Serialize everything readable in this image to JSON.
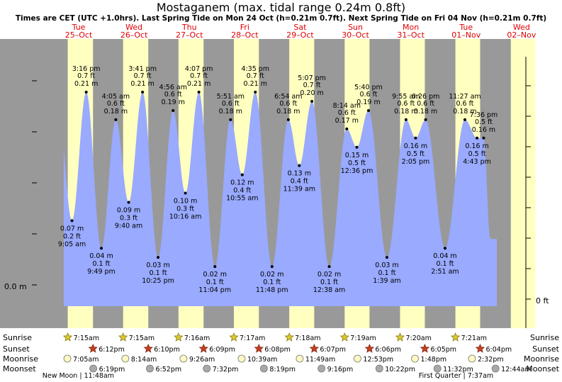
{
  "chart_data": {
    "type": "area",
    "title": "Mostaganem (max. tidal range 0.24m 0.8ft)",
    "subtitle": "Times are CET (UTC +1.0hrs). Last Spring Tide on Mon 24 Oct (h=0.21m 0.7ft). Next Spring Tide on Fri 04 Nov (h=0.21m 0.7ft)",
    "x_range_days": [
      0,
      9
    ],
    "x_range_note": "days from Tue 25-Oct 00:00",
    "ylim_m": [
      -0.02,
      0.24
    ],
    "y_axis_left_label": "0.0 m",
    "y_axis_right_label": "0 ft",
    "days": [
      {
        "dow": "Tue",
        "date": "25–Oct"
      },
      {
        "dow": "Wed",
        "date": "26–Oct"
      },
      {
        "dow": "Thu",
        "date": "27–Oct"
      },
      {
        "dow": "Fri",
        "date": "28–Oct"
      },
      {
        "dow": "Sat",
        "date": "29–Oct"
      },
      {
        "dow": "Sun",
        "date": "30–Oct"
      },
      {
        "dow": "Mon",
        "date": "31–Oct"
      },
      {
        "dow": "Tue",
        "date": "01–Nov"
      },
      {
        "dow": "Wed",
        "date": "02–Nov"
      }
    ],
    "daylight_hours": [
      [
        7.25,
        18.2
      ],
      [
        7.25,
        18.167
      ],
      [
        7.267,
        18.15
      ],
      [
        7.283,
        18.133
      ],
      [
        7.3,
        18.117
      ],
      [
        7.317,
        18.1
      ],
      [
        7.333,
        18.083
      ],
      [
        7.35,
        18.067
      ],
      [
        7.367,
        18.05
      ]
    ],
    "tides": [
      {
        "day": 0,
        "hour": 9.083,
        "type": "low",
        "m": 0.07,
        "m_text": "0.07 m",
        "ft_text": "0.2 ft",
        "time": "9:05 am"
      },
      {
        "day": 0,
        "hour": 15.267,
        "type": "high",
        "m": 0.21,
        "m_text": "0.21 m",
        "ft_text": "0.7 ft",
        "time": "3:16 pm"
      },
      {
        "day": 0,
        "hour": 21.817,
        "type": "low",
        "m": 0.04,
        "m_text": "0.04 m",
        "ft_text": "0.1 ft",
        "time": "9:49 pm"
      },
      {
        "day": 1,
        "hour": 4.083,
        "type": "high",
        "m": 0.18,
        "m_text": "0.18 m",
        "ft_text": "0.6 ft",
        "time": "4:05 am"
      },
      {
        "day": 1,
        "hour": 9.667,
        "type": "low",
        "m": 0.09,
        "m_text": "0.09 m",
        "ft_text": "0.3 ft",
        "time": "9:40 am"
      },
      {
        "day": 1,
        "hour": 15.683,
        "type": "high",
        "m": 0.21,
        "m_text": "0.21 m",
        "ft_text": "0.7 ft",
        "time": "3:41 pm"
      },
      {
        "day": 1,
        "hour": 22.417,
        "type": "low",
        "m": 0.03,
        "m_text": "0.03 m",
        "ft_text": "0.1 ft",
        "time": "10:25 pm"
      },
      {
        "day": 2,
        "hour": 4.933,
        "type": "high",
        "m": 0.19,
        "m_text": "0.19 m",
        "ft_text": "0.6 ft",
        "time": "4:56 am"
      },
      {
        "day": 2,
        "hour": 10.267,
        "type": "low",
        "m": 0.1,
        "m_text": "0.10 m",
        "ft_text": "0.3 ft",
        "time": "10:16 am"
      },
      {
        "day": 2,
        "hour": 16.117,
        "type": "high",
        "m": 0.21,
        "m_text": "0.21 m",
        "ft_text": "0.7 ft",
        "time": "4:07 pm"
      },
      {
        "day": 2,
        "hour": 23.067,
        "type": "low",
        "m": 0.02,
        "m_text": "0.02 m",
        "ft_text": "0.1 ft",
        "time": "11:04 pm"
      },
      {
        "day": 3,
        "hour": 5.85,
        "type": "high",
        "m": 0.18,
        "m_text": "0.18 m",
        "ft_text": "0.6 ft",
        "time": "5:51 am"
      },
      {
        "day": 3,
        "hour": 10.917,
        "type": "low",
        "m": 0.12,
        "m_text": "0.12 m",
        "ft_text": "0.4 ft",
        "time": "10:55 am"
      },
      {
        "day": 3,
        "hour": 16.583,
        "type": "high",
        "m": 0.21,
        "m_text": "0.21 m",
        "ft_text": "0.7 ft",
        "time": "4:35 pm"
      },
      {
        "day": 3,
        "hour": 23.8,
        "type": "low",
        "m": 0.02,
        "m_text": "0.02 m",
        "ft_text": "0.1 ft",
        "time": "11:48 pm"
      },
      {
        "day": 4,
        "hour": 6.9,
        "type": "high",
        "m": 0.18,
        "m_text": "0.18 m",
        "ft_text": "0.6 ft",
        "time": "6:54 am"
      },
      {
        "day": 4,
        "hour": 11.65,
        "type": "low",
        "m": 0.13,
        "m_text": "0.13 m",
        "ft_text": "0.4 ft",
        "time": "11:39 am"
      },
      {
        "day": 4,
        "hour": 17.117,
        "type": "high",
        "m": 0.2,
        "m_text": "0.20 m",
        "ft_text": "0.7 ft",
        "time": "5:07 pm"
      },
      {
        "day": 5,
        "hour": 0.633,
        "type": "low",
        "m": 0.02,
        "m_text": "0.02 m",
        "ft_text": "0.1 ft",
        "time": "12:38 am"
      },
      {
        "day": 5,
        "hour": 8.233,
        "type": "high",
        "m": 0.17,
        "m_text": "0.17 m",
        "ft_text": "0.6 ft",
        "time": "8:14 am"
      },
      {
        "day": 5,
        "hour": 12.6,
        "type": "low",
        "m": 0.15,
        "m_text": "0.15 m",
        "ft_text": "0.5 ft",
        "time": "12:36 pm"
      },
      {
        "day": 5,
        "hour": 17.667,
        "type": "high",
        "m": 0.19,
        "m_text": "0.19 m",
        "ft_text": "0.6 ft",
        "time": "5:40 pm"
      },
      {
        "day": 6,
        "hour": 1.65,
        "type": "low",
        "m": 0.03,
        "m_text": "0.03 m",
        "ft_text": "0.1 ft",
        "time": "1:39 am"
      },
      {
        "day": 6,
        "hour": 9.917,
        "type": "high",
        "m": 0.18,
        "m_text": "0.18 m",
        "ft_text": "0.6 ft",
        "time": "9:55 am"
      },
      {
        "day": 6,
        "hour": 14.083,
        "type": "low",
        "m": 0.16,
        "m_text": "0.16 m",
        "ft_text": "0.5 ft",
        "time": "2:05 pm"
      },
      {
        "day": 6,
        "hour": 18.433,
        "type": "high",
        "m": 0.18,
        "m_text": "0.18 m",
        "ft_text": "0.6 ft",
        "time": "6:26 pm"
      },
      {
        "day": 7,
        "hour": 2.85,
        "type": "low",
        "m": 0.04,
        "m_text": "0.04 m",
        "ft_text": "0.1 ft",
        "time": "2:51 am"
      },
      {
        "day": 7,
        "hour": 11.45,
        "type": "high",
        "m": 0.18,
        "m_text": "0.18 m",
        "ft_text": "0.6 ft",
        "time": "11:27 am"
      },
      {
        "day": 7,
        "hour": 16.717,
        "type": "low",
        "m": 0.16,
        "m_text": "0.16 m",
        "ft_text": "0.5 ft",
        "time": "4:43 pm"
      },
      {
        "day": 7,
        "hour": 19.6,
        "type": "high",
        "m": 0.16,
        "m_text": "0.16 m",
        "ft_text": "0.5 ft",
        "time": "7:36 pm"
      }
    ],
    "rows": [
      {
        "key": "sunrise",
        "label": "Sunrise",
        "icon": "sun-icon",
        "color": "#d8c832",
        "events": [
          {
            "day": 0,
            "hour": 7.25,
            "text": "7:15am"
          },
          {
            "day": 1,
            "hour": 7.25,
            "text": "7:15am"
          },
          {
            "day": 2,
            "hour": 7.267,
            "text": "7:16am"
          },
          {
            "day": 3,
            "hour": 7.283,
            "text": "7:17am"
          },
          {
            "day": 4,
            "hour": 7.3,
            "text": "7:18am"
          },
          {
            "day": 5,
            "hour": 7.317,
            "text": "7:19am"
          },
          {
            "day": 6,
            "hour": 7.333,
            "text": "7:20am"
          },
          {
            "day": 7,
            "hour": 7.35,
            "text": "7:21am"
          }
        ]
      },
      {
        "key": "sunset",
        "label": "Sunset",
        "icon": "sunset-star-icon",
        "color": "#c8401e",
        "events": [
          {
            "day": 0,
            "hour": 18.2,
            "text": "6:12pm"
          },
          {
            "day": 1,
            "hour": 18.167,
            "text": "6:10pm"
          },
          {
            "day": 2,
            "hour": 18.15,
            "text": "6:09pm"
          },
          {
            "day": 3,
            "hour": 18.133,
            "text": "6:08pm"
          },
          {
            "day": 4,
            "hour": 18.117,
            "text": "6:07pm"
          },
          {
            "day": 5,
            "hour": 18.1,
            "text": "6:06pm"
          },
          {
            "day": 6,
            "hour": 18.083,
            "text": "6:05pm"
          },
          {
            "day": 7,
            "hour": 18.067,
            "text": "6:04pm"
          }
        ]
      },
      {
        "key": "moonrise",
        "label": "Moonrise",
        "icon": "moonrise-icon",
        "color": "#fff8c0",
        "events": [
          {
            "day": 0,
            "hour": 7.083,
            "text": "7:05am"
          },
          {
            "day": 1,
            "hour": 8.233,
            "text": "8:14am"
          },
          {
            "day": 2,
            "hour": 9.433,
            "text": "9:26am"
          },
          {
            "day": 3,
            "hour": 10.65,
            "text": "10:39am"
          },
          {
            "day": 4,
            "hour": 11.817,
            "text": "11:49am"
          },
          {
            "day": 5,
            "hour": 12.883,
            "text": "12:53pm"
          },
          {
            "day": 6,
            "hour": 13.8,
            "text": "1:48pm"
          },
          {
            "day": 7,
            "hour": 14.533,
            "text": "2:32pm"
          }
        ]
      },
      {
        "key": "moonset",
        "label": "Moonset",
        "icon": "moonset-icon",
        "color": "#a8a8a8",
        "events": [
          {
            "day": 0,
            "hour": 18.317,
            "text": "6:19pm"
          },
          {
            "day": 1,
            "hour": 18.867,
            "text": "6:52pm"
          },
          {
            "day": 2,
            "hour": 19.533,
            "text": "7:32pm"
          },
          {
            "day": 3,
            "hour": 20.317,
            "text": "8:19pm"
          },
          {
            "day": 4,
            "hour": 21.267,
            "text": "9:16pm"
          },
          {
            "day": 5,
            "hour": 22.367,
            "text": "10:22pm"
          },
          {
            "day": 6,
            "hour": 23.533,
            "text": "11:32pm"
          },
          {
            "day": 8,
            "hour": 0.733,
            "text": "12:44am"
          }
        ]
      }
    ],
    "moon_phases": [
      {
        "text": "New Moon | 11:48am",
        "day": 0,
        "hour": 11.8
      },
      {
        "text": "First Quarter | 7:37am",
        "day": 7,
        "hour": 7.617
      }
    ],
    "colors": {
      "night": "#999999",
      "day": "#ffffc0",
      "water": "#99aaff",
      "text": "#000000",
      "day_label": "#e00000"
    }
  }
}
